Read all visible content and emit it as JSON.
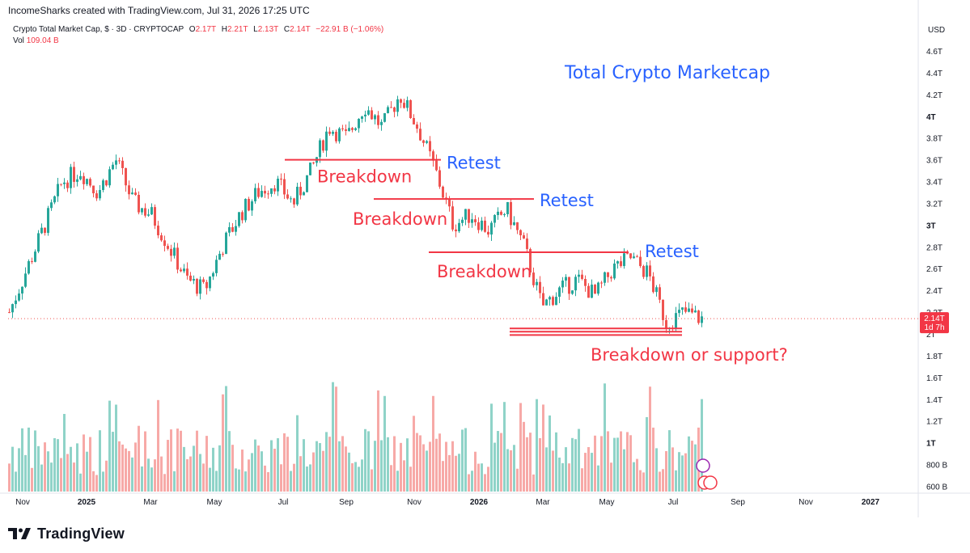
{
  "header": {
    "attribution": "IncomeSharks created with TradingView.com, Jul 31, 2026 17:25 UTC"
  },
  "legend": {
    "symbol": "Crypto Total Market Cap, $ · 3D · CRYPTOCAP",
    "o_label": "O",
    "o_value": "2.17T",
    "h_label": "H",
    "h_value": "2.21T",
    "l_label": "L",
    "l_value": "2.13T",
    "c_label": "C",
    "c_value": "2.14T",
    "change": "−22.91 B (−1.06%)",
    "vol_label": "Vol",
    "vol_value": "109.04 B"
  },
  "currency": "USD",
  "footer": {
    "brand": "TradingView"
  },
  "colors": {
    "up": "#26a69a",
    "down": "#ef5350",
    "vol_up": "#8fd3c8",
    "vol_down": "#f7a9a7",
    "annotation_red": "#f23645",
    "annotation_blue": "#2962ff"
  },
  "chart_data": {
    "type": "candlestick",
    "title": "Total Crypto Marketcap",
    "price_axis": {
      "labels": [
        "4.6T",
        "4.4T",
        "4.2T",
        "4T",
        "3.8T",
        "3.6T",
        "3.4T",
        "3.2T",
        "3T",
        "2.8T",
        "2.6T",
        "2.4T",
        "2.2T",
        "2T",
        "1.8T",
        "1.6T",
        "1.4T",
        "1.2T",
        "1T",
        "800 B",
        "600 B"
      ],
      "values": [
        4.6,
        4.4,
        4.2,
        4.0,
        3.8,
        3.6,
        3.4,
        3.2,
        3.0,
        2.8,
        2.6,
        2.4,
        2.2,
        2.0,
        1.8,
        1.6,
        1.4,
        1.2,
        1.0,
        0.8,
        0.6
      ],
      "unit": "T USD"
    },
    "time_axis": [
      "Nov",
      "2025",
      "Mar",
      "May",
      "Jul",
      "Sep",
      "Nov",
      "2026",
      "Mar",
      "May",
      "Jul",
      "Sep",
      "Nov",
      "2027"
    ],
    "last_price": {
      "value": "2.14T",
      "countdown": "1d 7h"
    },
    "levels": [
      {
        "label": "Breakdown",
        "retest": "Retest",
        "price": 3.6
      },
      {
        "label": "Breakdown",
        "retest": "Retest",
        "price": 3.24
      },
      {
        "label": "Breakdown",
        "retest": "Retest",
        "price": 2.75
      }
    ],
    "support_lines": [
      2.05,
      2.02,
      1.99
    ],
    "support_question": "Breakdown or support?",
    "price_path": [
      2.2,
      2.6,
      3.0,
      3.4,
      3.5,
      3.3,
      3.6,
      3.2,
      3.1,
      2.8,
      2.5,
      2.4,
      2.8,
      3.1,
      3.3,
      3.4,
      3.2,
      3.5,
      3.9,
      3.8,
      4.1,
      3.9,
      4.2,
      3.9,
      3.5,
      3.0,
      3.1,
      2.95,
      3.15,
      2.8,
      2.25,
      2.4,
      2.5,
      2.35,
      2.6,
      2.7,
      2.55,
      2.1,
      2.2,
      2.14
    ]
  }
}
